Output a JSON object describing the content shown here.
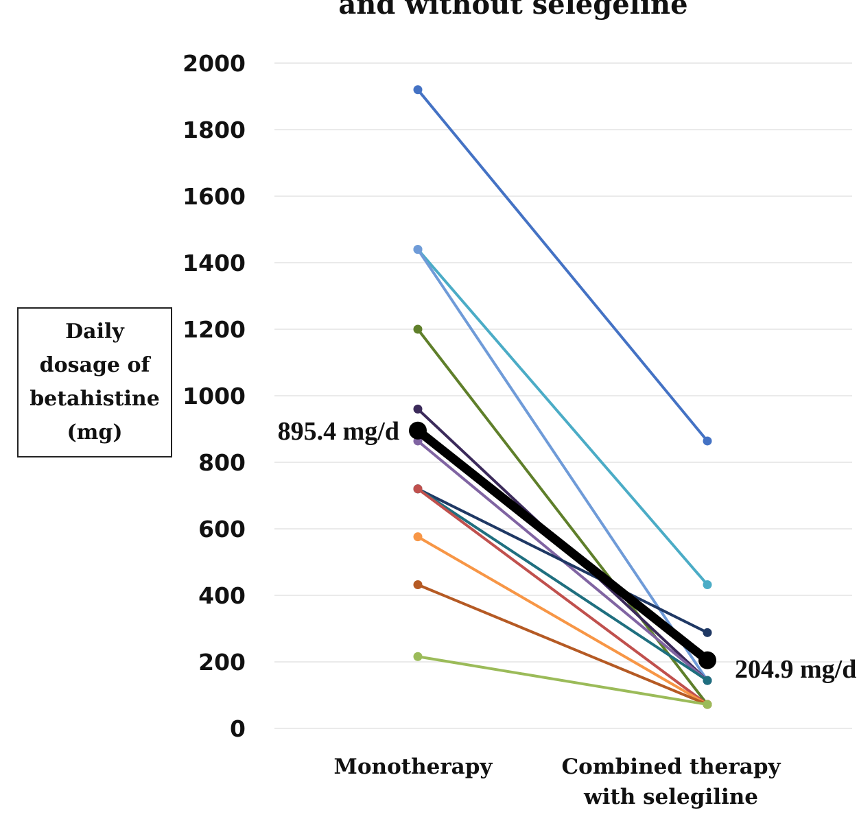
{
  "chart_data": {
    "type": "line",
    "title": "and without selegeline",
    "ylabel": [
      "Daily",
      "dosage of",
      "betahistine",
      "(mg)"
    ],
    "categories": [
      [
        "Monotherapy"
      ],
      [
        "Combined therapy",
        "with selegiline"
      ]
    ],
    "yticks": [
      "0",
      "200",
      "400",
      "600",
      "800",
      "1000",
      "1200",
      "1400",
      "1600",
      "1800",
      "2000"
    ],
    "ylim": [
      0,
      2000
    ],
    "grid": true,
    "series": [
      {
        "color": "#4472c4",
        "values": [
          1920,
          864
        ]
      },
      {
        "color": "#4bacc6",
        "values": [
          1440,
          432
        ]
      },
      {
        "color": "#6f9bd8",
        "values": [
          1440,
          144
        ]
      },
      {
        "color": "#5f7f2a",
        "values": [
          1200,
          72
        ]
      },
      {
        "color": "#3b2a5a",
        "values": [
          960,
          144
        ]
      },
      {
        "color": "#8064a2",
        "values": [
          864,
          144
        ]
      },
      {
        "color": "#1f3864",
        "values": [
          720,
          288
        ]
      },
      {
        "color": "#1f6f7f",
        "values": [
          720,
          144
        ]
      },
      {
        "color": "#c0504d",
        "values": [
          720,
          72
        ]
      },
      {
        "color": "#f79646",
        "values": [
          576,
          72
        ]
      },
      {
        "color": "#b55a24",
        "values": [
          432,
          72
        ]
      },
      {
        "color": "#9bbb59",
        "values": [
          216,
          72
        ]
      }
    ],
    "mean": {
      "color": "#000000",
      "values": [
        895.4,
        204.9
      ],
      "labels": [
        "895.4 mg/d",
        "204.9 mg/d"
      ]
    }
  }
}
